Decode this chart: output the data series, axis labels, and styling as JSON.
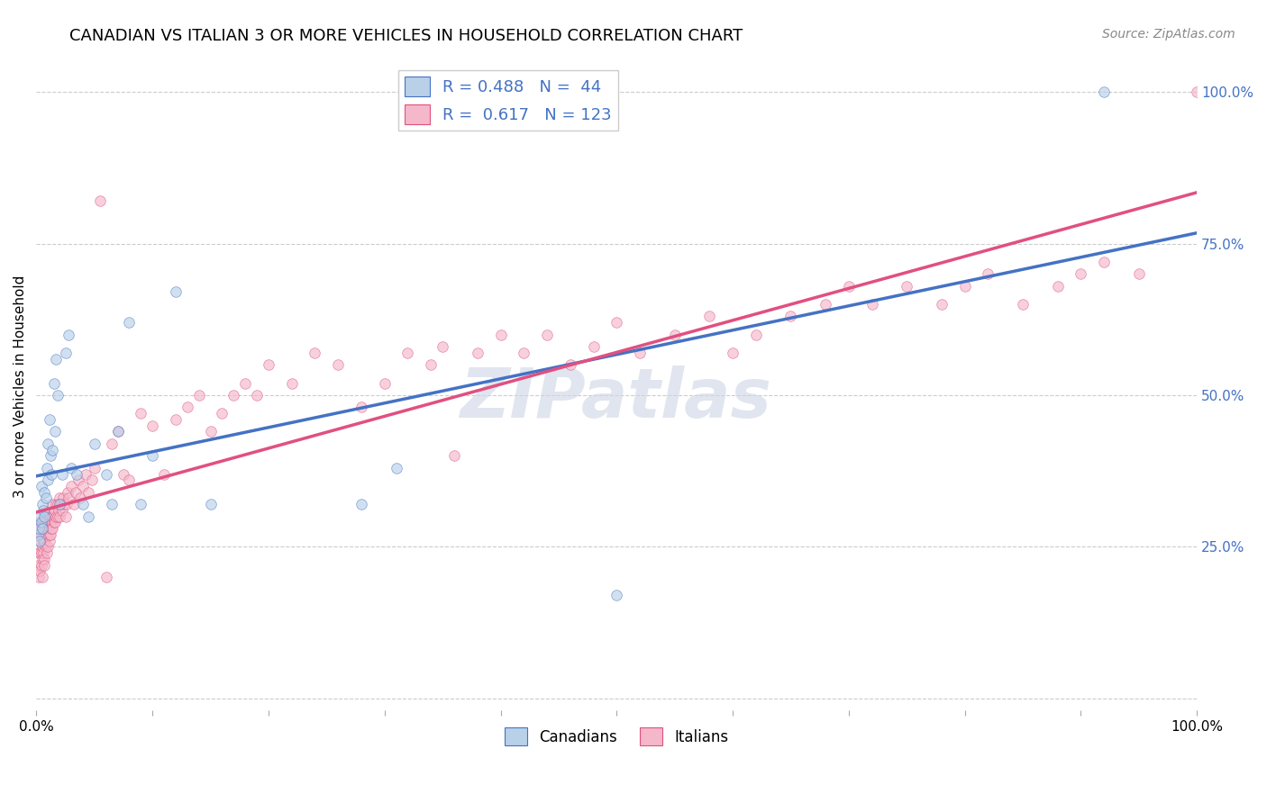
{
  "title": "CANADIAN VS ITALIAN 3 OR MORE VEHICLES IN HOUSEHOLD CORRELATION CHART",
  "source": "Source: ZipAtlas.com",
  "ylabel": "3 or more Vehicles in Household",
  "watermark": "ZIPatlas",
  "canadians": {
    "R": 0.488,
    "N": 44,
    "fill_color": "#b8d0e8",
    "edge_color": "#4472c4",
    "line_color": "#4472c4",
    "x": [
      0.001,
      0.002,
      0.003,
      0.003,
      0.004,
      0.004,
      0.005,
      0.005,
      0.006,
      0.007,
      0.007,
      0.008,
      0.009,
      0.01,
      0.01,
      0.011,
      0.012,
      0.013,
      0.014,
      0.015,
      0.016,
      0.017,
      0.018,
      0.02,
      0.022,
      0.025,
      0.028,
      0.03,
      0.035,
      0.04,
      0.045,
      0.05,
      0.06,
      0.065,
      0.07,
      0.08,
      0.09,
      0.1,
      0.12,
      0.15,
      0.28,
      0.31,
      0.5,
      0.92
    ],
    "y": [
      0.27,
      0.28,
      0.3,
      0.26,
      0.29,
      0.35,
      0.32,
      0.28,
      0.31,
      0.34,
      0.3,
      0.33,
      0.38,
      0.36,
      0.42,
      0.46,
      0.4,
      0.37,
      0.41,
      0.52,
      0.44,
      0.56,
      0.5,
      0.32,
      0.37,
      0.57,
      0.6,
      0.38,
      0.37,
      0.32,
      0.3,
      0.42,
      0.37,
      0.32,
      0.44,
      0.62,
      0.32,
      0.4,
      0.67,
      0.32,
      0.32,
      0.38,
      0.17,
      1.0
    ]
  },
  "italians": {
    "R": 0.617,
    "N": 123,
    "fill_color": "#f4b8ca",
    "edge_color": "#e05080",
    "line_color": "#e05080",
    "x": [
      0.001,
      0.001,
      0.002,
      0.002,
      0.002,
      0.003,
      0.003,
      0.003,
      0.003,
      0.004,
      0.004,
      0.004,
      0.005,
      0.005,
      0.005,
      0.005,
      0.006,
      0.006,
      0.006,
      0.007,
      0.007,
      0.007,
      0.007,
      0.008,
      0.008,
      0.008,
      0.009,
      0.009,
      0.01,
      0.01,
      0.01,
      0.011,
      0.011,
      0.011,
      0.012,
      0.012,
      0.013,
      0.013,
      0.014,
      0.014,
      0.014,
      0.015,
      0.015,
      0.016,
      0.016,
      0.017,
      0.017,
      0.018,
      0.018,
      0.019,
      0.02,
      0.02,
      0.021,
      0.022,
      0.023,
      0.024,
      0.025,
      0.026,
      0.027,
      0.028,
      0.03,
      0.032,
      0.034,
      0.036,
      0.038,
      0.04,
      0.042,
      0.045,
      0.048,
      0.05,
      0.055,
      0.06,
      0.065,
      0.07,
      0.075,
      0.08,
      0.09,
      0.1,
      0.11,
      0.12,
      0.13,
      0.14,
      0.15,
      0.16,
      0.17,
      0.18,
      0.19,
      0.2,
      0.22,
      0.24,
      0.26,
      0.28,
      0.3,
      0.32,
      0.34,
      0.35,
      0.36,
      0.38,
      0.4,
      0.42,
      0.44,
      0.46,
      0.48,
      0.5,
      0.52,
      0.55,
      0.58,
      0.6,
      0.62,
      0.65,
      0.68,
      0.7,
      0.72,
      0.75,
      0.78,
      0.8,
      0.82,
      0.85,
      0.88,
      0.9,
      0.92,
      0.95,
      1.0
    ],
    "y": [
      0.27,
      0.22,
      0.24,
      0.28,
      0.2,
      0.24,
      0.26,
      0.21,
      0.29,
      0.24,
      0.27,
      0.22,
      0.23,
      0.25,
      0.28,
      0.2,
      0.24,
      0.26,
      0.29,
      0.23,
      0.26,
      0.28,
      0.22,
      0.25,
      0.27,
      0.3,
      0.24,
      0.27,
      0.25,
      0.28,
      0.3,
      0.26,
      0.28,
      0.27,
      0.29,
      0.27,
      0.29,
      0.28,
      0.3,
      0.28,
      0.32,
      0.29,
      0.31,
      0.29,
      0.31,
      0.3,
      0.32,
      0.3,
      0.32,
      0.31,
      0.33,
      0.3,
      0.32,
      0.31,
      0.33,
      0.32,
      0.3,
      0.32,
      0.34,
      0.33,
      0.35,
      0.32,
      0.34,
      0.36,
      0.33,
      0.35,
      0.37,
      0.34,
      0.36,
      0.38,
      0.82,
      0.2,
      0.42,
      0.44,
      0.37,
      0.36,
      0.47,
      0.45,
      0.37,
      0.46,
      0.48,
      0.5,
      0.44,
      0.47,
      0.5,
      0.52,
      0.5,
      0.55,
      0.52,
      0.57,
      0.55,
      0.48,
      0.52,
      0.57,
      0.55,
      0.58,
      0.4,
      0.57,
      0.6,
      0.57,
      0.6,
      0.55,
      0.58,
      0.62,
      0.57,
      0.6,
      0.63,
      0.57,
      0.6,
      0.63,
      0.65,
      0.68,
      0.65,
      0.68,
      0.65,
      0.68,
      0.7,
      0.65,
      0.68,
      0.7,
      0.72,
      0.7,
      1.0
    ]
  },
  "xlim": [
    0,
    1.0
  ],
  "ylim": [
    -0.02,
    1.05
  ],
  "yticks": [
    0.0,
    0.25,
    0.5,
    0.75,
    1.0
  ],
  "ytick_labels": [
    "",
    "25.0%",
    "50.0%",
    "75.0%",
    "100.0%"
  ],
  "background_color": "#ffffff",
  "grid_color": "#cccccc",
  "title_fontsize": 13,
  "axis_label_fontsize": 11,
  "tick_fontsize": 11,
  "source_fontsize": 10,
  "marker_size": 70,
  "marker_alpha": 0.65,
  "watermark_color": "#ccd5e5",
  "watermark_fontsize": 55,
  "right_tick_color": "#4472c4"
}
